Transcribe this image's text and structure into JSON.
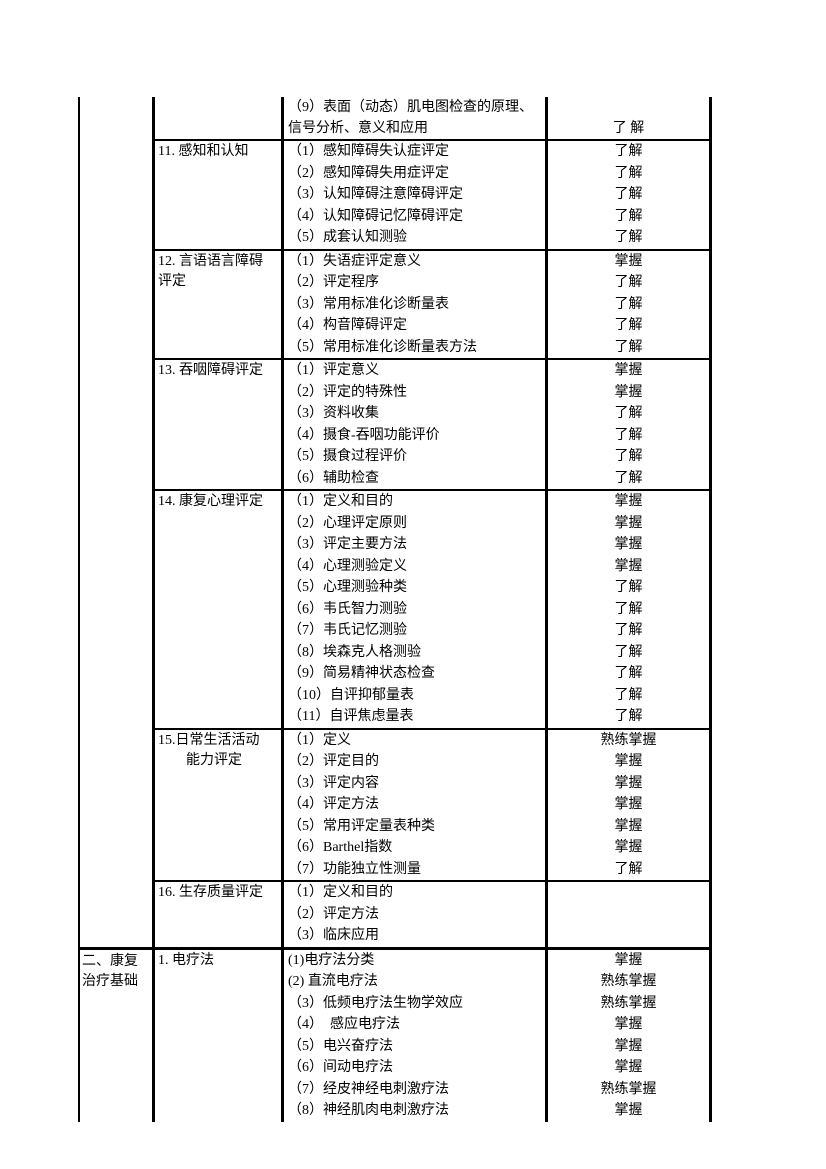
{
  "page": {
    "background": "#ffffff",
    "text_color": "#000000",
    "border_color": "#000000"
  },
  "table": {
    "part1": {
      "part_label": "",
      "sections": [
        {
          "topic": "",
          "items": [
            {
              "text": "（9）表面（动态）肌电图检查的原理、\n信号分析、意义和应用",
              "level": "了 解"
            }
          ]
        },
        {
          "topic": "11. 感知和认知",
          "items": [
            {
              "text": "（1）感知障碍失认症评定",
              "level": "了解"
            },
            {
              "text": "（2）感知障碍失用症评定",
              "level": "了解"
            },
            {
              "text": "（3）认知障碍注意障碍评定",
              "level": "了解"
            },
            {
              "text": "（4）认知障碍记忆障碍评定",
              "level": "了解"
            },
            {
              "text": "（5）成套认知测验",
              "level": "了解"
            }
          ]
        },
        {
          "topic": "12. 言语语言障碍\n评定",
          "items": [
            {
              "text": "（1）失语症评定意义",
              "level": "掌握"
            },
            {
              "text": "（2）评定程序",
              "level": "了解"
            },
            {
              "text": "（3）常用标准化诊断量表",
              "level": "了解"
            },
            {
              "text": "（4）构音障碍评定",
              "level": "了解"
            },
            {
              "text": "（5）常用标准化诊断量表方法",
              "level": "了解"
            }
          ]
        },
        {
          "topic": "13. 吞咽障碍评定",
          "items": [
            {
              "text": "（1）评定意义",
              "level": "掌握"
            },
            {
              "text": "（2）评定的特殊性",
              "level": "掌握"
            },
            {
              "text": "（3）资料收集",
              "level": "了解"
            },
            {
              "text": "（4）摄食-吞咽功能评价",
              "level": "了解"
            },
            {
              "text": "（5）摄食过程评价",
              "level": "了解"
            },
            {
              "text": "（6）辅助检查",
              "level": "了解"
            }
          ]
        },
        {
          "topic": "14. 康复心理评定",
          "items": [
            {
              "text": "（1）定义和目的",
              "level": "掌握"
            },
            {
              "text": "（2）心理评定原则",
              "level": "掌握"
            },
            {
              "text": "（3）评定主要方法",
              "level": "掌握"
            },
            {
              "text": "（4）心理测验定义",
              "level": "掌握"
            },
            {
              "text": "（5）心理测验种类",
              "level": "了解"
            },
            {
              "text": "（6）韦氏智力测验",
              "level": "了解"
            },
            {
              "text": "（7）韦氏记忆测验",
              "level": "了解"
            },
            {
              "text": "（8）埃森克人格测验",
              "level": "了解"
            },
            {
              "text": "（9）简易精神状态检查",
              "level": "了解"
            },
            {
              "text": "（10）自评抑郁量表",
              "level": "了解"
            },
            {
              "text": "（11）自评焦虑量表",
              "level": "了解"
            }
          ]
        },
        {
          "topic": "15.日常生活活动\n　　能力评定",
          "items": [
            {
              "text": "（1）定义",
              "level": "熟练掌握"
            },
            {
              "text": "（2）评定目的",
              "level": "掌握"
            },
            {
              "text": "（3）评定内容",
              "level": "掌握"
            },
            {
              "text": "（4）评定方法",
              "level": "掌握"
            },
            {
              "text": "（5）常用评定量表种类",
              "level": "掌握"
            },
            {
              "text": "（6）Barthel指数",
              "level": "掌握"
            },
            {
              "text": "（7）功能独立性测量",
              "level": "了解"
            }
          ]
        },
        {
          "topic": "16. 生存质量评定",
          "items": [
            {
              "text": "（1）定义和目的",
              "level": ""
            },
            {
              "text": "（2）评定方法",
              "level": ""
            },
            {
              "text": "（3）临床应用",
              "level": ""
            }
          ]
        }
      ]
    },
    "part2": {
      "part_label": "二、康复\n治疗基础",
      "sections": [
        {
          "topic": "1. 电疗法",
          "items": [
            {
              "text": "(1)电疗法分类",
              "level": "掌握"
            },
            {
              "text": "(2) 直流电疗法",
              "level": "熟练掌握"
            },
            {
              "text": "（3）低频电疗法生物学效应",
              "level": "熟练掌握"
            },
            {
              "text": "（4）　感应电疗法",
              "level": "掌握"
            },
            {
              "text": "（5）电兴奋疗法",
              "level": "掌握"
            },
            {
              "text": "（6）间动电疗法",
              "level": "掌握"
            },
            {
              "text": "（7）经皮神经电刺激疗法",
              "level": "熟练掌握"
            },
            {
              "text": "（8）神经肌肉电刺激疗法",
              "level": "掌握"
            }
          ]
        }
      ]
    }
  }
}
